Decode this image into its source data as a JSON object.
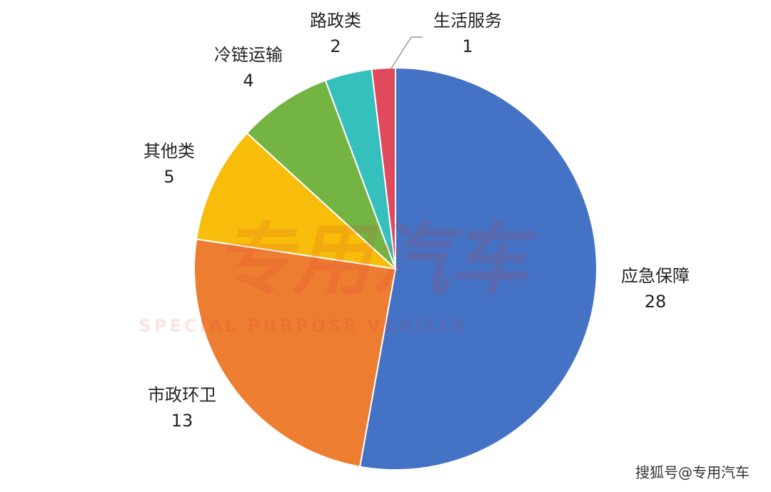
{
  "chart_data": {
    "type": "pie",
    "categories": [
      "应急保障",
      "市政环卫",
      "其他类",
      "冷链运输",
      "路政类",
      "生活服务"
    ],
    "values": [
      28,
      13,
      5,
      4,
      2,
      1
    ],
    "colors": [
      "#4472c4",
      "#ed7d31",
      "#f7bd0a",
      "#74b443",
      "#35bfbd",
      "#e04a5c"
    ],
    "watermark": "专用汽车",
    "watermark_subtitle": "SPECIAL PURPOSE VEHICLE",
    "source": "搜狐号@专用汽车"
  }
}
